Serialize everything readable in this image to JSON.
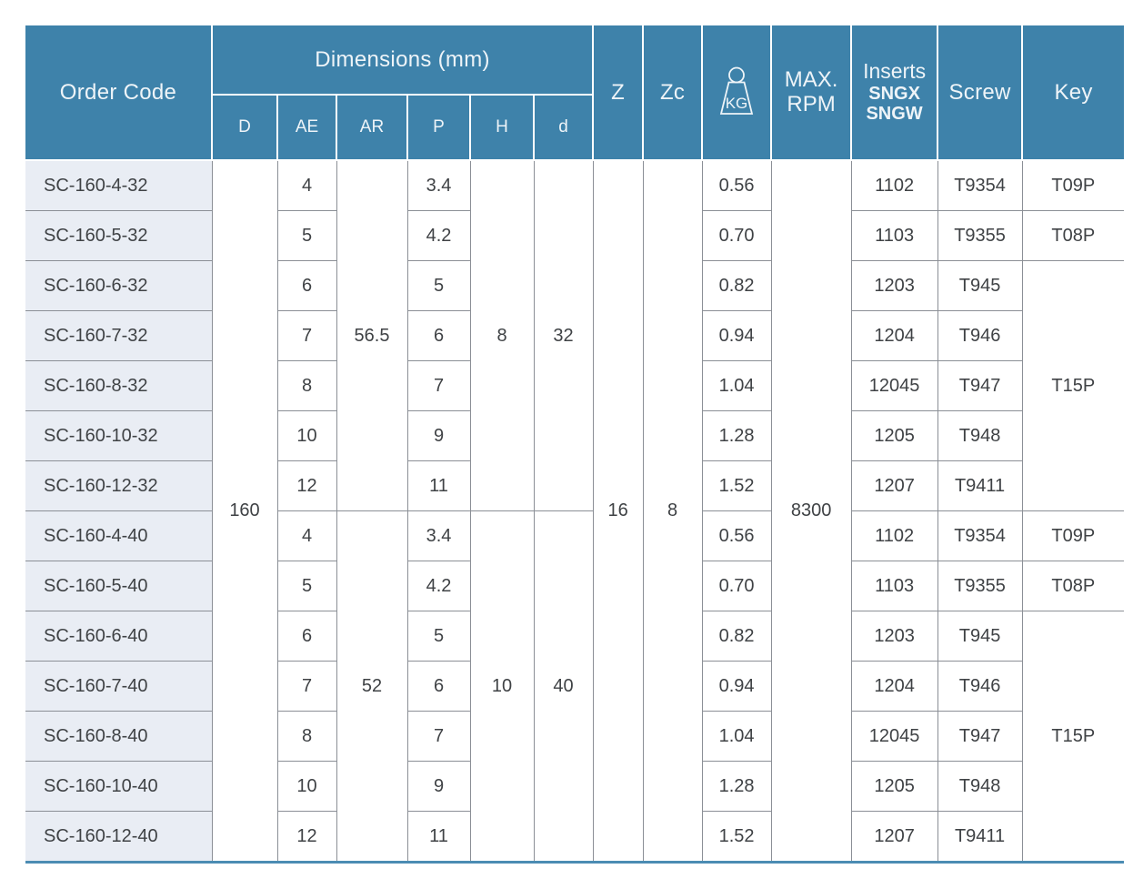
{
  "colors": {
    "header_bg": "#3e82aa",
    "header_text": "#eef4f8",
    "body_text": "#3f4245",
    "order_code_bg": "#e9edf4",
    "grid_line": "#8b8f96",
    "bottom_accent_line": "#4b8cb3"
  },
  "table": {
    "header": {
      "order_code": "Order Code",
      "dimensions_group": "Dimensions (mm)",
      "dim_cols": [
        "D",
        "AE",
        "AR",
        "P",
        "H",
        "d"
      ],
      "z": "Z",
      "zc": "Zc",
      "kg_icon": "weight-kg-icon",
      "kg_label": "KG",
      "max_rpm": [
        "MAX.",
        "RPM"
      ],
      "inserts": {
        "title": "Inserts",
        "line2": "SNGX",
        "line3": "SNGW"
      },
      "screw": "Screw",
      "key": "Key"
    },
    "shared": {
      "D": "160",
      "Z": "16",
      "Zc": "8",
      "max_rpm": "8300"
    },
    "groups": [
      {
        "AR": "56.5",
        "H": "8",
        "d": "32"
      },
      {
        "AR": "52",
        "H": "10",
        "d": "40"
      }
    ],
    "rows": [
      {
        "order_code": "SC-160-4-32",
        "AE": "4",
        "P": "3.4",
        "kg": "0.56",
        "insert": "1102",
        "screw": "T9354",
        "key": "T09P"
      },
      {
        "order_code": "SC-160-5-32",
        "AE": "5",
        "P": "4.2",
        "kg": "0.70",
        "insert": "1103",
        "screw": "T9355",
        "key": "T08P"
      },
      {
        "order_code": "SC-160-6-32",
        "AE": "6",
        "P": "5",
        "kg": "0.82",
        "insert": "1203",
        "screw": "T945",
        "key": "T15P",
        "key_rowspan": 5
      },
      {
        "order_code": "SC-160-7-32",
        "AE": "7",
        "P": "6",
        "kg": "0.94",
        "insert": "1204",
        "screw": "T946"
      },
      {
        "order_code": "SC-160-8-32",
        "AE": "8",
        "P": "7",
        "kg": "1.04",
        "insert": "12045",
        "screw": "T947"
      },
      {
        "order_code": "SC-160-10-32",
        "AE": "10",
        "P": "9",
        "kg": "1.28",
        "insert": "1205",
        "screw": "T948"
      },
      {
        "order_code": "SC-160-12-32",
        "AE": "12",
        "P": "11",
        "kg": "1.52",
        "insert": "1207",
        "screw": "T9411"
      },
      {
        "order_code": "SC-160-4-40",
        "AE": "4",
        "P": "3.4",
        "kg": "0.56",
        "insert": "1102",
        "screw": "T9354",
        "key": "T09P"
      },
      {
        "order_code": "SC-160-5-40",
        "AE": "5",
        "P": "4.2",
        "kg": "0.70",
        "insert": "1103",
        "screw": "T9355",
        "key": "T08P"
      },
      {
        "order_code": "SC-160-6-40",
        "AE": "6",
        "P": "5",
        "kg": "0.82",
        "insert": "1203",
        "screw": "T945",
        "key": "T15P",
        "key_rowspan": 5
      },
      {
        "order_code": "SC-160-7-40",
        "AE": "7",
        "P": "6",
        "kg": "0.94",
        "insert": "1204",
        "screw": "T946"
      },
      {
        "order_code": "SC-160-8-40",
        "AE": "8",
        "P": "7",
        "kg": "1.04",
        "insert": "12045",
        "screw": "T947"
      },
      {
        "order_code": "SC-160-10-40",
        "AE": "10",
        "P": "9",
        "kg": "1.28",
        "insert": "1205",
        "screw": "T948"
      },
      {
        "order_code": "SC-160-12-40",
        "AE": "12",
        "P": "11",
        "kg": "1.52",
        "insert": "1207",
        "screw": "T9411"
      }
    ]
  }
}
